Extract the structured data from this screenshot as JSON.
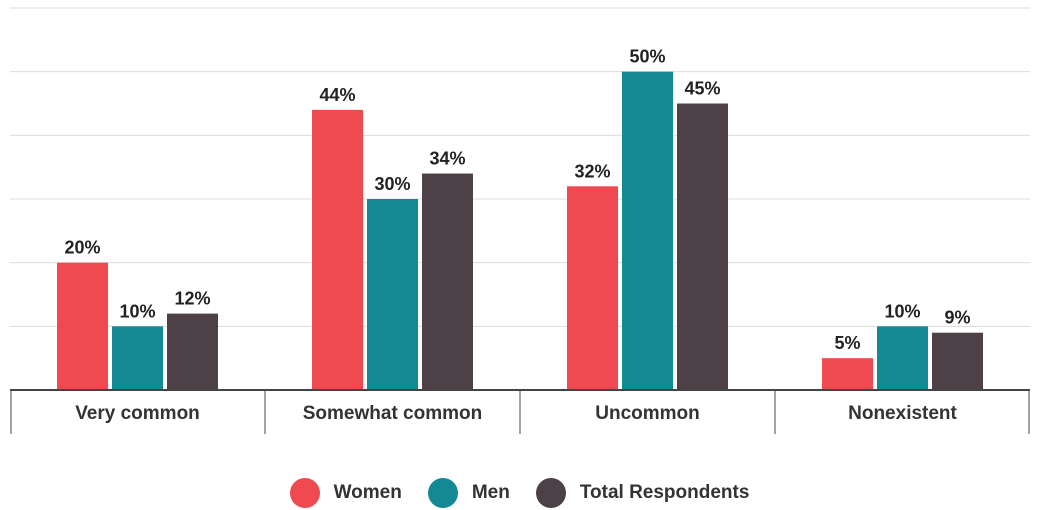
{
  "chart_data": {
    "type": "bar",
    "categories": [
      "Very common",
      "Somewhat common",
      "Uncommon",
      "Nonexistent"
    ],
    "series": [
      {
        "name": "Women",
        "color": "#ef4a50",
        "values": [
          20,
          44,
          32,
          5
        ],
        "labels": [
          "20%",
          "44%",
          "32%",
          "5%"
        ]
      },
      {
        "name": "Men",
        "color": "#138a93",
        "values": [
          10,
          30,
          50,
          10
        ],
        "labels": [
          "10%",
          "30%",
          "50%",
          "10%"
        ]
      },
      {
        "name": "Total Respondents",
        "color": "#4e4047",
        "values": [
          12,
          34,
          45,
          9
        ],
        "labels": [
          "12%",
          "34%",
          "45%",
          "9%"
        ]
      }
    ],
    "ylim": [
      0,
      60
    ],
    "grid": true,
    "legend": "bottom-center"
  }
}
